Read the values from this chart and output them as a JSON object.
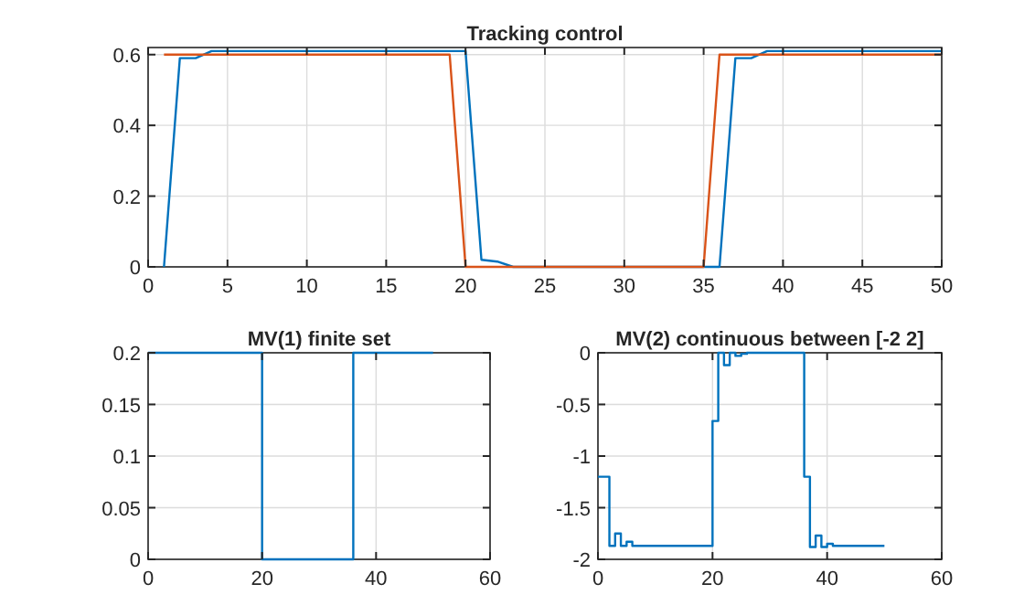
{
  "chart_data": [
    {
      "type": "line",
      "title": "Tracking control",
      "x": [
        1,
        2,
        3,
        4,
        5,
        6,
        7,
        8,
        9,
        10,
        11,
        12,
        13,
        14,
        15,
        16,
        17,
        18,
        19,
        20,
        21,
        22,
        23,
        24,
        25,
        26,
        27,
        28,
        29,
        30,
        31,
        32,
        33,
        34,
        35,
        36,
        37,
        38,
        39,
        40,
        41,
        42,
        43,
        44,
        45,
        46,
        47,
        48,
        49,
        50
      ],
      "xlim": [
        0,
        50
      ],
      "xticks": [
        0,
        5,
        10,
        15,
        20,
        25,
        30,
        35,
        40,
        45,
        50
      ],
      "ylim": [
        0,
        0.62
      ],
      "yticks": [
        0,
        0.2,
        0.4,
        0.6
      ],
      "grid": true,
      "series": [
        {
          "color": "#0072bd",
          "values": [
            0,
            0.59,
            0.59,
            0.61,
            0.61,
            0.61,
            0.61,
            0.61,
            0.61,
            0.61,
            0.61,
            0.61,
            0.61,
            0.61,
            0.61,
            0.61,
            0.61,
            0.61,
            0.61,
            0.61,
            0.02,
            0.015,
            0,
            0,
            0,
            0,
            0,
            0,
            0,
            0,
            0,
            0,
            0,
            0,
            0,
            0,
            0.59,
            0.59,
            0.61,
            0.61,
            0.61,
            0.61,
            0.61,
            0.61,
            0.61,
            0.61,
            0.61,
            0.61,
            0.61,
            0.61
          ]
        },
        {
          "color": "#d95319",
          "values": [
            0.6,
            0.6,
            0.6,
            0.6,
            0.6,
            0.6,
            0.6,
            0.6,
            0.6,
            0.6,
            0.6,
            0.6,
            0.6,
            0.6,
            0.6,
            0.6,
            0.6,
            0.6,
            0.6,
            0,
            0,
            0,
            0,
            0,
            0,
            0,
            0,
            0,
            0,
            0,
            0,
            0,
            0,
            0,
            0,
            0.6,
            0.6,
            0.6,
            0.6,
            0.6,
            0.6,
            0.6,
            0.6,
            0.6,
            0.6,
            0.6,
            0.6,
            0.6,
            0.6,
            0.6
          ]
        }
      ]
    },
    {
      "type": "step",
      "title": "MV(1) finite set",
      "x": [
        0,
        20,
        36,
        50
      ],
      "xlim": [
        0,
        60
      ],
      "xticks": [
        0,
        20,
        40,
        60
      ],
      "ylim": [
        0,
        0.2
      ],
      "yticks": [
        0,
        0.05,
        0.1,
        0.15,
        0.2
      ],
      "grid": true,
      "series": [
        {
          "color": "#0072bd",
          "values": [
            0.2,
            0,
            0.2,
            0.2
          ]
        }
      ]
    },
    {
      "type": "step",
      "title": "MV(2) continuous between [-2 2]",
      "x": [
        0,
        2,
        3,
        4,
        5,
        6,
        20,
        21,
        22,
        23,
        24,
        25,
        26,
        36,
        37,
        38,
        39,
        40,
        41,
        50
      ],
      "xlim": [
        0,
        60
      ],
      "xticks": [
        0,
        20,
        40,
        60
      ],
      "ylim": [
        -2,
        0
      ],
      "yticks": [
        -2,
        -1.5,
        -1,
        -0.5,
        0
      ],
      "grid": true,
      "series": [
        {
          "color": "#0072bd",
          "values": [
            -1.2,
            -1.87,
            -1.75,
            -1.87,
            -1.83,
            -1.87,
            -0.66,
            0,
            -0.12,
            0,
            -0.03,
            -0.01,
            0,
            -1.2,
            -1.88,
            -1.77,
            -1.88,
            -1.85,
            -1.87,
            -1.87
          ]
        }
      ]
    }
  ]
}
